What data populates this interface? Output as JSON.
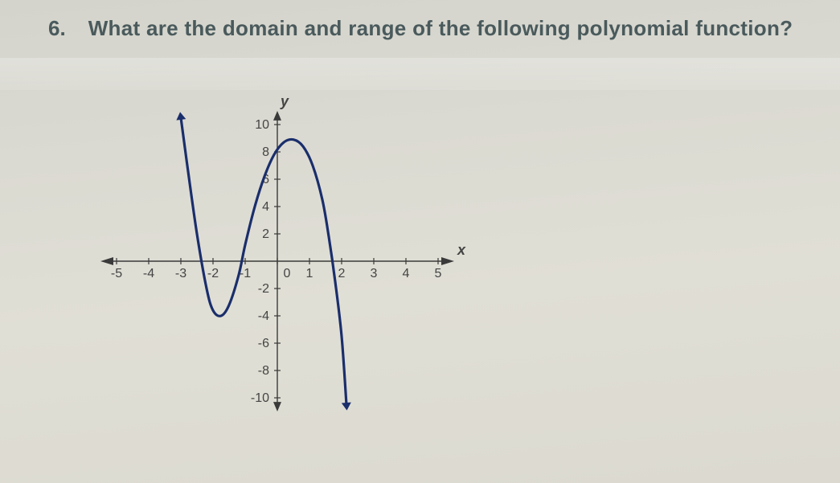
{
  "question": {
    "number": "6.",
    "text": "What are the domain and range of the following polynomial function?"
  },
  "chart": {
    "type": "line",
    "background_color": "transparent",
    "axis_color": "#3a3a3a",
    "curve_color": "#1a2e6b",
    "curve_width": 3.2,
    "label_color": "#444444",
    "tick_fontsize": 16,
    "axis_label_fontsize": 18,
    "x_axis": {
      "label": "x",
      "min": -5,
      "max": 5,
      "ticks": [
        -5,
        -4,
        -3,
        -2,
        -1,
        0,
        1,
        2,
        3,
        4,
        5
      ],
      "tick_labels": [
        "-5",
        "-4",
        "-3",
        "-2",
        "-1",
        "0",
        "1",
        "2",
        "3",
        "4",
        "5"
      ]
    },
    "y_axis": {
      "label": "y",
      "min": -10,
      "max": 10,
      "ticks": [
        -10,
        -8,
        -6,
        -4,
        -2,
        0,
        2,
        4,
        6,
        8,
        10
      ],
      "tick_labels": [
        "-10",
        "-8",
        "-6",
        "-4",
        "-2",
        "0",
        "2",
        "4",
        "6",
        "8",
        "10"
      ]
    },
    "curve_points": [
      [
        -3.0,
        10.5
      ],
      [
        -2.8,
        7.0
      ],
      [
        -2.5,
        2.0
      ],
      [
        -2.2,
        -2.0
      ],
      [
        -2.0,
        -3.6
      ],
      [
        -1.75,
        -4.0
      ],
      [
        -1.5,
        -3.2
      ],
      [
        -1.2,
        -1.0
      ],
      [
        -1.0,
        1.2
      ],
      [
        -0.7,
        4.0
      ],
      [
        -0.4,
        6.2
      ],
      [
        -0.1,
        7.8
      ],
      [
        0.2,
        8.7
      ],
      [
        0.5,
        8.9
      ],
      [
        0.8,
        8.4
      ],
      [
        1.1,
        7.0
      ],
      [
        1.4,
        4.5
      ],
      [
        1.6,
        1.8
      ],
      [
        1.8,
        -1.5
      ],
      [
        2.0,
        -5.5
      ],
      [
        2.15,
        -10.5
      ]
    ],
    "arrows": {
      "start": true,
      "end": true
    }
  }
}
